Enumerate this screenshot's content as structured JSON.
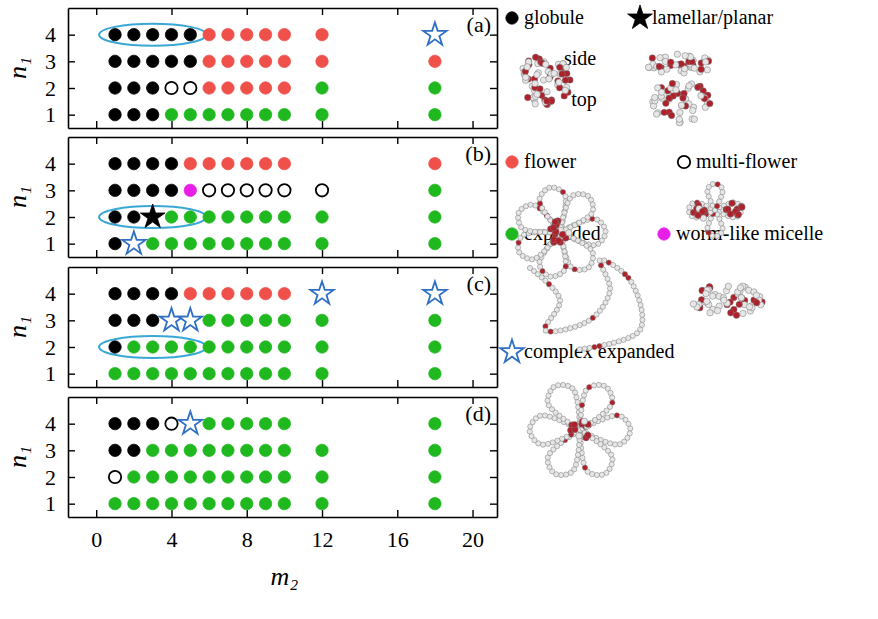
{
  "chart_data": {
    "type": "scatter",
    "x_label": "m₂",
    "y_label": "n₁",
    "xlim": [
      -1.5,
      21.3
    ],
    "ylim": [
      0.5,
      5
    ],
    "xticks": [
      0,
      4,
      8,
      12,
      16,
      20
    ],
    "yticks": [
      1,
      2,
      3,
      4
    ],
    "legend": "right",
    "annotations": [
      "side",
      "top"
    ],
    "panels": [
      {
        "label": "(a)",
        "highlight": {
          "x": [
            1,
            5
          ],
          "y": 4
        }
      },
      {
        "label": "(b)",
        "highlight": {
          "x": [
            1,
            5
          ],
          "y": 2
        }
      },
      {
        "label": "(c)",
        "highlight": {
          "x": [
            1,
            5
          ],
          "y": 2
        }
      },
      {
        "label": "(d)"
      }
    ],
    "series": [
      {
        "name": "globule",
        "color": "#000000",
        "marker": "circle",
        "x": [
          [
            1,
            2,
            3,
            4,
            5,
            1,
            2,
            3,
            4,
            5,
            1,
            2,
            3,
            1,
            2,
            3
          ],
          [
            1,
            2,
            3,
            4,
            1,
            2,
            3,
            4,
            1,
            2,
            1
          ],
          [
            1,
            2,
            3,
            4,
            1,
            2,
            3,
            1
          ],
          [
            1,
            2,
            3,
            1,
            2
          ]
        ],
        "values": [
          [
            4,
            4,
            4,
            4,
            4,
            3,
            3,
            3,
            3,
            3,
            2,
            2,
            2,
            1,
            1,
            1
          ],
          [
            4,
            4,
            4,
            4,
            3,
            3,
            3,
            3,
            2,
            2,
            1
          ],
          [
            4,
            4,
            4,
            4,
            3,
            3,
            3,
            2
          ],
          [
            4,
            4,
            4,
            3,
            3
          ]
        ]
      },
      {
        "name": "lamellar/planar",
        "color": "#000000",
        "marker": "star",
        "x": [
          [],
          [
            3
          ],
          [],
          []
        ],
        "values": [
          [],
          [
            2
          ],
          [],
          []
        ]
      },
      {
        "name": "flower",
        "color": "#f0504a",
        "marker": "circle",
        "x": [
          [
            6,
            7,
            8,
            9,
            10,
            12,
            6,
            7,
            8,
            9,
            10,
            12,
            18,
            6,
            7,
            8,
            9,
            10
          ],
          [
            5,
            6,
            7,
            8,
            9,
            10,
            18
          ],
          [
            5,
            6,
            7,
            8,
            9,
            10
          ],
          []
        ],
        "values": [
          [
            4,
            4,
            4,
            4,
            4,
            4,
            3,
            3,
            3,
            3,
            3,
            3,
            3,
            2,
            2,
            2,
            2,
            2
          ],
          [
            4,
            4,
            4,
            4,
            4,
            4,
            4
          ],
          [
            4,
            4,
            4,
            4,
            4,
            4
          ],
          []
        ]
      },
      {
        "name": "multi-flower",
        "color": "#000000",
        "marker": "open_circle",
        "x": [
          [
            4,
            5
          ],
          [
            6,
            7,
            8,
            9,
            10,
            12
          ],
          [],
          [
            4,
            1
          ]
        ],
        "values": [
          [
            2,
            2
          ],
          [
            3,
            3,
            3,
            3,
            3,
            3
          ],
          [],
          [
            4,
            2
          ]
        ]
      },
      {
        "name": "expanded",
        "color": "#1fb81f",
        "marker": "circle",
        "x": [
          [
            12,
            18,
            4,
            5,
            6,
            7,
            8,
            9,
            10,
            12,
            18
          ],
          [
            18,
            4,
            5,
            6,
            7,
            8,
            9,
            10,
            12,
            18,
            3,
            4,
            5,
            6,
            7,
            8,
            9,
            10,
            12,
            18
          ],
          [
            6,
            7,
            8,
            9,
            10,
            12,
            18,
            2,
            3,
            4,
            5,
            6,
            7,
            8,
            9,
            10,
            12,
            18,
            1,
            2,
            3,
            4,
            5,
            6,
            7,
            8,
            9,
            10,
            12,
            18
          ],
          [
            6,
            7,
            8,
            9,
            10,
            18,
            3,
            4,
            5,
            6,
            7,
            8,
            9,
            10,
            12,
            18,
            2,
            3,
            4,
            5,
            6,
            7,
            8,
            9,
            10,
            12,
            18,
            1,
            2,
            3,
            4,
            5,
            6,
            7,
            8,
            9,
            10,
            12,
            18
          ]
        ],
        "values": [
          [
            2,
            2,
            1,
            1,
            1,
            1,
            1,
            1,
            1,
            1,
            1
          ],
          [
            3,
            2,
            2,
            2,
            2,
            2,
            2,
            2,
            2,
            2,
            1,
            1,
            1,
            1,
            1,
            1,
            1,
            1,
            1,
            1
          ],
          [
            3,
            3,
            3,
            3,
            3,
            3,
            3,
            2,
            2,
            2,
            2,
            2,
            2,
            2,
            2,
            2,
            2,
            2,
            1,
            1,
            1,
            1,
            1,
            1,
            1,
            1,
            1,
            1,
            1,
            1
          ],
          [
            4,
            4,
            4,
            4,
            4,
            4,
            3,
            3,
            3,
            3,
            3,
            3,
            3,
            3,
            3,
            3,
            2,
            2,
            2,
            2,
            2,
            2,
            2,
            2,
            2,
            2,
            2,
            1,
            1,
            1,
            1,
            1,
            1,
            1,
            1,
            1,
            1,
            1,
            1
          ]
        ]
      },
      {
        "name": "worm-like micelle",
        "color": "#e61ee6",
        "marker": "circle",
        "x": [
          [],
          [
            5
          ],
          [],
          []
        ],
        "values": [
          [],
          [
            3
          ],
          [],
          []
        ]
      },
      {
        "name": "complex expanded",
        "color": "#2f6fc4",
        "marker": "open_star",
        "x": [
          [
            18
          ],
          [
            2
          ],
          [
            12,
            18,
            4,
            5
          ],
          [
            5
          ]
        ],
        "values": [
          [
            4
          ],
          [
            1
          ],
          [
            4,
            4,
            3,
            3
          ],
          [
            4
          ]
        ]
      }
    ]
  }
}
